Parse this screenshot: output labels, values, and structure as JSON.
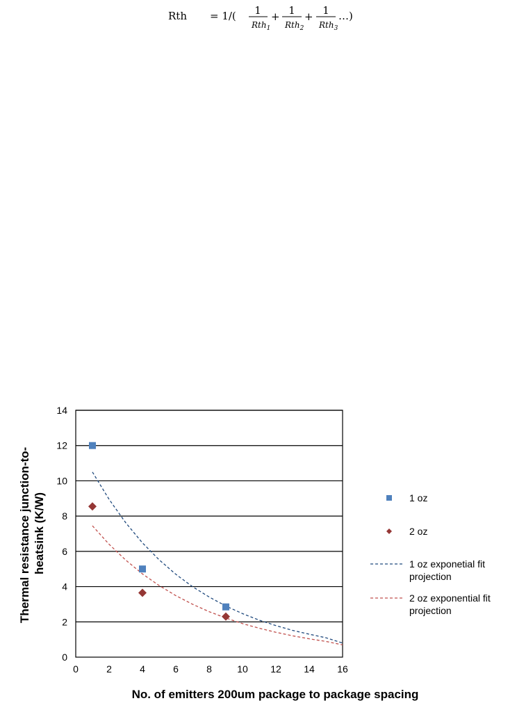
{
  "formula": {
    "lhs": "Rth",
    "prefix": "= 1/(",
    "terms": [
      {
        "num": "1",
        "den": "Rth",
        "sub": "1"
      },
      {
        "num": "1",
        "den": "Rth",
        "sub": "2"
      },
      {
        "num": "1",
        "den": "Rth",
        "sub": "3"
      }
    ],
    "plus": "+",
    "suffix": "…)"
  },
  "chart_data": {
    "type": "scatter",
    "title": "",
    "xlabel": "No. of emitters 200um package to package spacing",
    "ylabel_lines": [
      "Thermal resistance junction-to-",
      "heatsink (K/W)"
    ],
    "xlim": [
      0,
      16
    ],
    "ylim": [
      0,
      14
    ],
    "xticks": [
      0,
      2,
      4,
      6,
      8,
      10,
      12,
      14,
      16
    ],
    "yticks": [
      0,
      2,
      4,
      6,
      8,
      10,
      12,
      14
    ],
    "grid": "horizontal",
    "legend_position": "right",
    "series": [
      {
        "name": "1 oz",
        "kind": "points",
        "marker": "square",
        "color": "#4F81BD",
        "x": [
          1,
          4,
          9
        ],
        "y": [
          12.0,
          5.0,
          2.85
        ]
      },
      {
        "name": "2 oz",
        "kind": "points",
        "marker": "diamond",
        "color": "#953735",
        "x": [
          1,
          4,
          9
        ],
        "y": [
          8.55,
          3.65,
          2.3
        ]
      },
      {
        "name_lines": [
          "1 oz exponetial fit",
          "projection"
        ],
        "kind": "fit",
        "color": "#1F497D",
        "x": [
          1,
          2,
          3,
          4,
          5,
          6,
          7,
          8,
          9,
          10,
          11,
          12,
          13,
          14,
          15,
          16
        ],
        "y": [
          10.5,
          8.95,
          7.62,
          6.48,
          5.52,
          4.7,
          4.0,
          3.41,
          2.9,
          2.47,
          2.1,
          1.79,
          1.52,
          1.3,
          1.1,
          0.8
        ]
      },
      {
        "name_lines": [
          "2 oz exponential fit",
          "projection"
        ],
        "kind": "fit",
        "color": "#C0504D",
        "x": [
          1,
          2,
          3,
          4,
          5,
          6,
          7,
          8,
          9,
          10,
          11,
          12,
          13,
          14,
          15,
          16
        ],
        "y": [
          7.45,
          6.4,
          5.5,
          4.72,
          4.06,
          3.49,
          3.0,
          2.58,
          2.22,
          1.9,
          1.64,
          1.41,
          1.21,
          1.04,
          0.89,
          0.7
        ]
      }
    ]
  }
}
